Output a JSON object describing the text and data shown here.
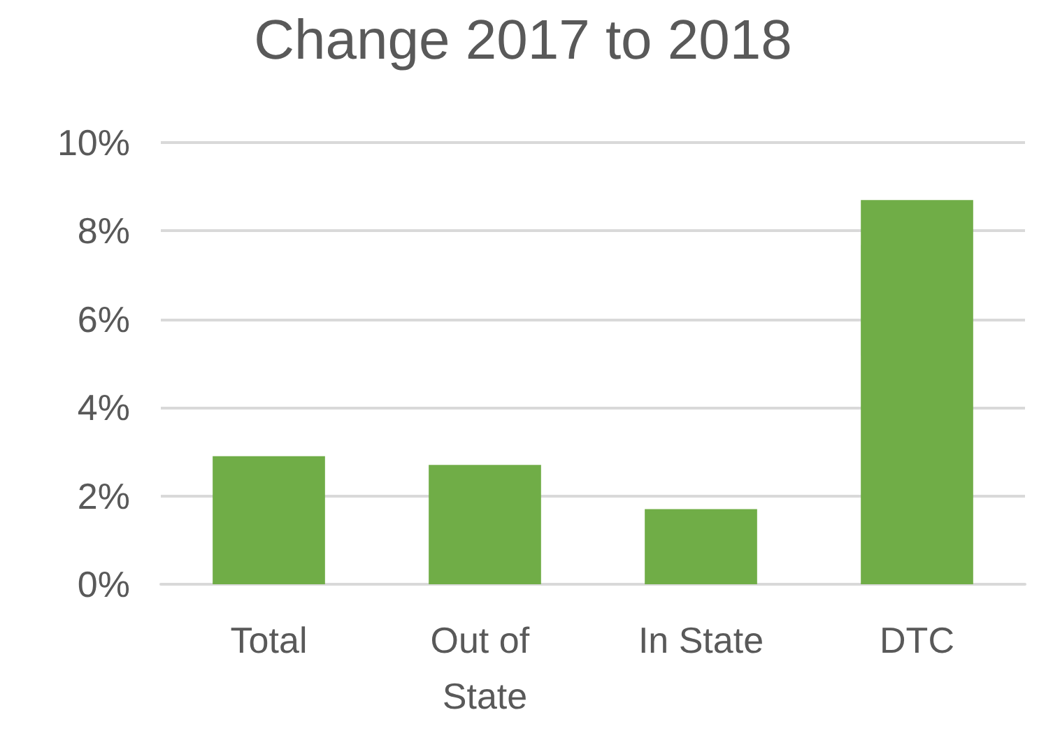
{
  "chart_data": {
    "type": "bar",
    "title": "Change 2017 to 2018",
    "categories": [
      "Total",
      "Out of State",
      "In State",
      "DTC"
    ],
    "values": [
      2.9,
      2.7,
      1.7,
      8.7
    ],
    "color": "#70ad47",
    "ylim": [
      0,
      10
    ],
    "yticks": [
      {
        "value": 0,
        "label": "0%"
      },
      {
        "value": 2,
        "label": "2%"
      },
      {
        "value": 4,
        "label": "4%"
      },
      {
        "value": 6,
        "label": "6%"
      },
      {
        "value": 8,
        "label": "8%"
      },
      {
        "value": 10,
        "label": "10%"
      }
    ],
    "grid": "y"
  }
}
